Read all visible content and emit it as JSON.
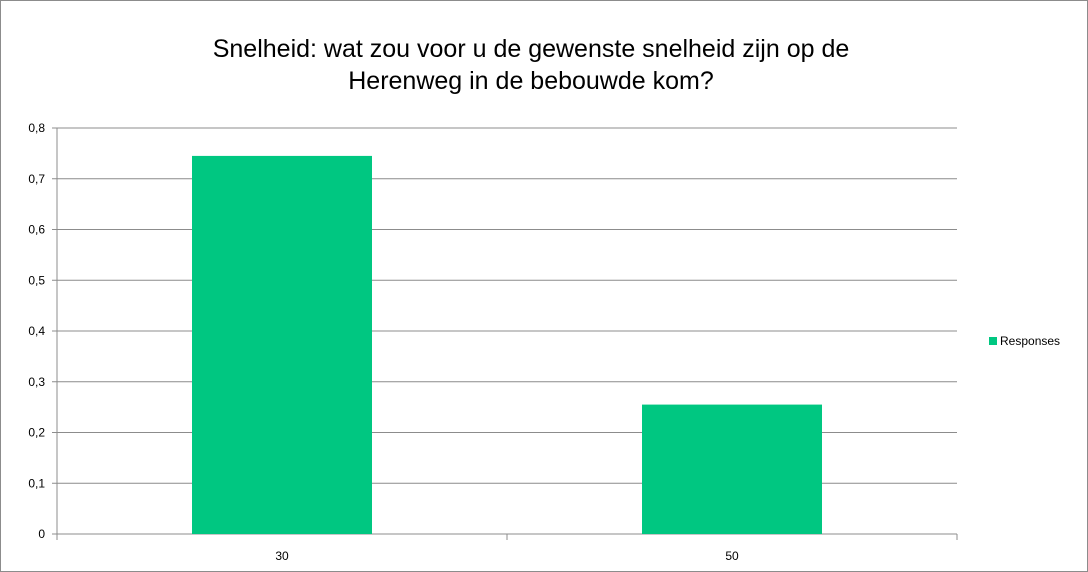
{
  "colors": {
    "bar": "#00c781",
    "gridline": "#8c8c8c",
    "axis": "#8c8c8c",
    "border": "#8c8c8c",
    "background": "#ffffff"
  },
  "chart_data": {
    "type": "bar",
    "title": "Snelheid: wat zou voor u de gewenste snelheid zijn op de\nHerenweg  in de bebouwde kom?",
    "xlabel": "",
    "ylabel": "",
    "categories": [
      "30",
      "50"
    ],
    "series": [
      {
        "name": "Responses",
        "values": [
          0.745,
          0.255
        ]
      }
    ],
    "ylim": [
      0,
      0.8
    ],
    "yticks": [
      "0",
      "0,1",
      "0,2",
      "0,3",
      "0,4",
      "0,5",
      "0,6",
      "0,7",
      "0,8"
    ],
    "grid": true,
    "legend_position": "right"
  }
}
